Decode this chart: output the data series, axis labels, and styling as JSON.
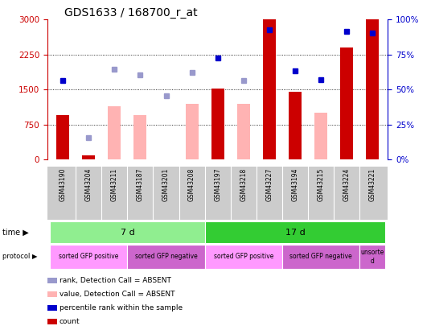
{
  "title": "GDS1633 / 168700_r_at",
  "samples": [
    "GSM43190",
    "GSM43204",
    "GSM43211",
    "GSM43187",
    "GSM43201",
    "GSM43208",
    "GSM43197",
    "GSM43218",
    "GSM43227",
    "GSM43194",
    "GSM43215",
    "GSM43224",
    "GSM43221"
  ],
  "count_values": [
    950,
    100,
    null,
    null,
    null,
    null,
    1530,
    null,
    3000,
    1460,
    null,
    2400,
    3000
  ],
  "count_absent": [
    null,
    null,
    1150,
    950,
    null,
    1200,
    null,
    1200,
    null,
    null,
    1000,
    null,
    null
  ],
  "rank_values": [
    1700,
    null,
    null,
    null,
    null,
    null,
    2170,
    null,
    2780,
    1900,
    1720,
    2750,
    2720
  ],
  "rank_absent": [
    null,
    480,
    1930,
    1820,
    1370,
    1870,
    null,
    1700,
    null,
    null,
    null,
    null,
    null
  ],
  "ylim_left": [
    0,
    3000
  ],
  "ylim_right": [
    0,
    100
  ],
  "left_ticks": [
    0,
    750,
    1500,
    2250,
    3000
  ],
  "right_ticks": [
    0,
    25,
    50,
    75,
    100
  ],
  "time_groups": [
    {
      "label": "7 d",
      "start": 0,
      "end": 6,
      "color": "#90EE90"
    },
    {
      "label": "17 d",
      "start": 6,
      "end": 13,
      "color": "#33CC33"
    }
  ],
  "protocol_groups": [
    {
      "label": "sorted GFP positive",
      "start": 0,
      "end": 3,
      "color": "#FF99FF"
    },
    {
      "label": "sorted GFP negative",
      "start": 3,
      "end": 6,
      "color": "#CC66CC"
    },
    {
      "label": "sorted GFP positive",
      "start": 6,
      "end": 9,
      "color": "#FF99FF"
    },
    {
      "label": "sorted GFP negative",
      "start": 9,
      "end": 12,
      "color": "#CC66CC"
    },
    {
      "label": "unsorte\nd",
      "start": 12,
      "end": 13,
      "color": "#CC66CC"
    }
  ],
  "bar_width": 0.5,
  "count_color": "#CC0000",
  "count_absent_color": "#FFB3B3",
  "rank_color": "#0000CC",
  "rank_absent_color": "#9999CC",
  "bg_color": "#FFFFFF",
  "axis_color_left": "#CC0000",
  "axis_color_right": "#0000CC",
  "label_area_color": "#CCCCCC",
  "legend_items": [
    {
      "color": "#CC0000",
      "label": "count"
    },
    {
      "color": "#0000CC",
      "label": "percentile rank within the sample"
    },
    {
      "color": "#FFB3B3",
      "label": "value, Detection Call = ABSENT"
    },
    {
      "color": "#9999CC",
      "label": "rank, Detection Call = ABSENT"
    }
  ]
}
